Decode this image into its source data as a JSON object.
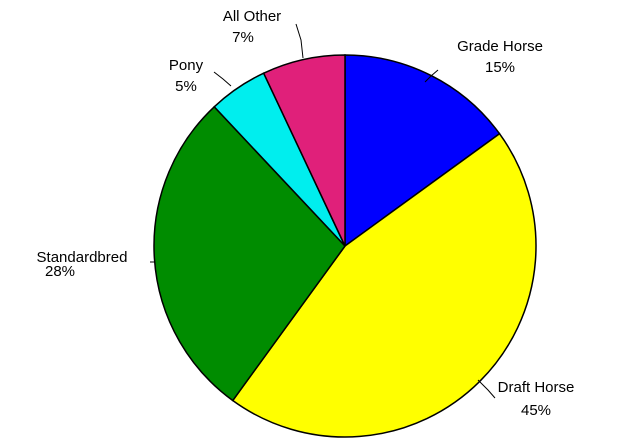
{
  "chart_data": {
    "type": "pie",
    "title": "",
    "start_angle_deg": 0,
    "direction": "clockwise",
    "slices": [
      {
        "label": "Grade Horse",
        "pct_label": "15%",
        "value": 15,
        "color": "#0000FF"
      },
      {
        "label": "Draft Horse",
        "pct_label": "45%",
        "value": 45,
        "color": "#FFFF00"
      },
      {
        "label": "Standardbred",
        "pct_label": "28%",
        "value": 28,
        "color": "#008C00"
      },
      {
        "label": "Pony",
        "pct_label": "5%",
        "value": 5,
        "color": "#00EEEE"
      },
      {
        "label": "All Other",
        "pct_label": "7%",
        "value": 7,
        "color": "#E0207A"
      }
    ],
    "legend": "none",
    "labels_outside": true
  }
}
